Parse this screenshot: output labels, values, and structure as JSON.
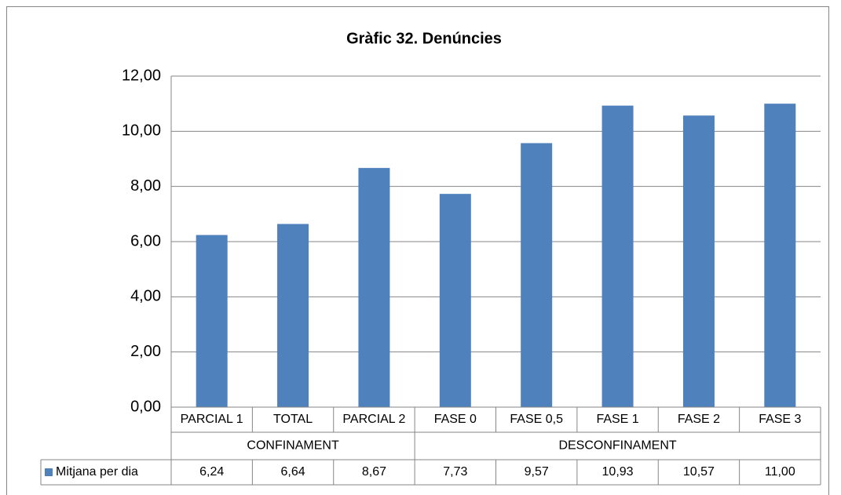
{
  "chart_data": {
    "type": "bar",
    "title": "Gràfic 32. Denúncies",
    "categories": [
      "PARCIAL 1",
      "TOTAL",
      "PARCIAL 2",
      "FASE 0",
      "FASE 0,5",
      "FASE 1",
      "FASE 2",
      "FASE 3"
    ],
    "groups": [
      {
        "label": "CONFINAMENT",
        "count": 3
      },
      {
        "label": "DESCONFINAMENT",
        "count": 5
      }
    ],
    "series": [
      {
        "name": "Mitjana per dia",
        "color": "#4f81bd",
        "values": [
          6.24,
          6.64,
          8.67,
          7.73,
          9.57,
          10.93,
          10.57,
          11.0
        ],
        "value_labels": [
          "6,24",
          "6,64",
          "8,67",
          "7,73",
          "9,57",
          "10,93",
          "10,57",
          "11,00"
        ]
      }
    ],
    "ylim": [
      0,
      12
    ],
    "yticks": [
      {
        "value": 0,
        "label": "0,00"
      },
      {
        "value": 2,
        "label": "2,00"
      },
      {
        "value": 4,
        "label": "4,00"
      },
      {
        "value": 6,
        "label": "6,00"
      },
      {
        "value": 8,
        "label": "8,00"
      },
      {
        "value": 10,
        "label": "10,00"
      },
      {
        "value": 12,
        "label": "12,00"
      }
    ],
    "grid": true
  }
}
